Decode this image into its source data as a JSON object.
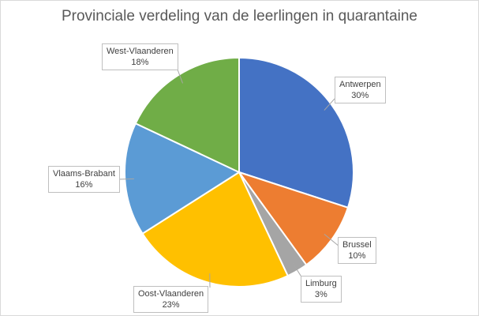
{
  "chart_data": {
    "type": "pie",
    "title": "Provinciale verdeling van de leerlingen in quarantaine",
    "categories": [
      "Antwerpen",
      "Brussel",
      "Limburg",
      "Oost-Vlaanderen",
      "Vlaams-Brabant",
      "West-Vlaanderen"
    ],
    "values": [
      30,
      10,
      3,
      23,
      16,
      18
    ],
    "labels": [
      "30%",
      "10%",
      "3%",
      "23%",
      "16%",
      "18%"
    ],
    "colors": [
      "#4472C4",
      "#ED7D31",
      "#A5A5A5",
      "#FFC000",
      "#5B9BD5",
      "#70AD47"
    ],
    "legend": "none",
    "start_angle": "12 o'clock, clockwise"
  }
}
